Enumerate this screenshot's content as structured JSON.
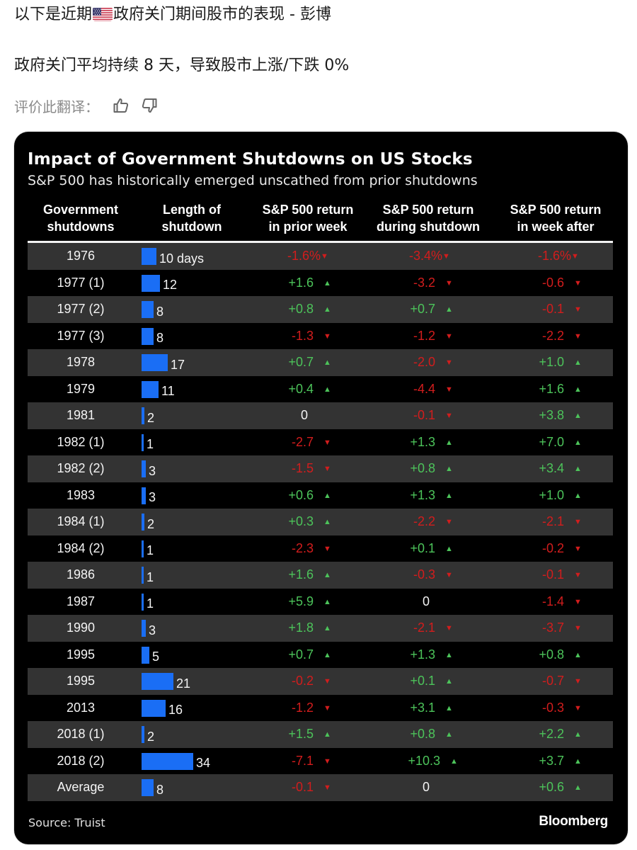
{
  "post": {
    "line1_before_flag": "以下是近期",
    "flag_icon": "us-flag-icon",
    "line1_after_flag": "政府关门期间股市的表现 - 彭博",
    "line2": "政府关门平均持续 8 天，导致股市上涨/下跌 0%",
    "rate_label": "评价此翻译：",
    "thumbs_up_icon": "thumbs-up-icon",
    "thumbs_down_icon": "thumbs-down-icon"
  },
  "colors": {
    "positive": "#4cc35a",
    "negative": "#d21d1d",
    "bar": "#1a6ef5",
    "row_gray": "#333333",
    "card_bg": "#000000"
  },
  "chart_data": {
    "type": "table",
    "title": "Impact of Government Shutdowns on US Stocks",
    "subtitle": "S&P 500 has historically emerged unscathed from prior shutdowns",
    "columns": [
      "Government shutdowns",
      "Length of shutdown",
      "S&P 500 return in prior week",
      "S&P 500 return during shutdown",
      "S&P 500 return in week after"
    ],
    "column_headers": [
      {
        "line1": "Government",
        "line2": "shutdowns"
      },
      {
        "line1": "Length of",
        "line2": "shutdown"
      },
      {
        "line1": "S&P 500 return",
        "line2": "in prior week"
      },
      {
        "line1": "S&P 500 return",
        "line2": "during shutdown"
      },
      {
        "line1": "S&P 500 return",
        "line2": "in week after"
      }
    ],
    "length_unit_first_row": "days",
    "return_unit_first_row": "%",
    "rows": [
      {
        "label": "1976",
        "days": 10,
        "days_text": "10 days",
        "prior": "-1.6%",
        "during": "-3.4%",
        "after": "-1.6%"
      },
      {
        "label": "1977 (1)",
        "days": 12,
        "days_text": "12",
        "prior": "+1.6",
        "during": "-3.2",
        "after": "-0.6"
      },
      {
        "label": "1977 (2)",
        "days": 8,
        "days_text": "8",
        "prior": "+0.8",
        "during": "+0.7",
        "after": "-0.1"
      },
      {
        "label": "1977 (3)",
        "days": 8,
        "days_text": "8",
        "prior": "-1.3",
        "during": "-1.2",
        "after": "-2.2"
      },
      {
        "label": "1978",
        "days": 17,
        "days_text": "17",
        "prior": "+0.7",
        "during": "-2.0",
        "after": "+1.0"
      },
      {
        "label": "1979",
        "days": 11,
        "days_text": "11",
        "prior": "+0.4",
        "during": "-4.4",
        "after": "+1.6"
      },
      {
        "label": "1981",
        "days": 2,
        "days_text": "2",
        "prior": "0",
        "during": "-0.1",
        "after": "+3.8"
      },
      {
        "label": "1982 (1)",
        "days": 1,
        "days_text": "1",
        "prior": "-2.7",
        "during": "+1.3",
        "after": "+7.0"
      },
      {
        "label": "1982 (2)",
        "days": 3,
        "days_text": "3",
        "prior": "-1.5",
        "during": "+0.8",
        "after": "+3.4"
      },
      {
        "label": "1983",
        "days": 3,
        "days_text": "3",
        "prior": "+0.6",
        "during": "+1.3",
        "after": "+1.0"
      },
      {
        "label": "1984 (1)",
        "days": 2,
        "days_text": "2",
        "prior": "+0.3",
        "during": "-2.2",
        "after": "-2.1"
      },
      {
        "label": "1984 (2)",
        "days": 1,
        "days_text": "1",
        "prior": "-2.3",
        "during": "+0.1",
        "after": "-0.2"
      },
      {
        "label": "1986",
        "days": 1,
        "days_text": "1",
        "prior": "+1.6",
        "during": "-0.3",
        "after": "-0.1"
      },
      {
        "label": "1987",
        "days": 1,
        "days_text": "1",
        "prior": "+5.9",
        "during": "0",
        "after": "-1.4"
      },
      {
        "label": "1990",
        "days": 3,
        "days_text": "3",
        "prior": "+1.8",
        "during": "-2.1",
        "after": "-3.7"
      },
      {
        "label": "1995",
        "days": 5,
        "days_text": "5",
        "prior": "+0.7",
        "during": "+1.3",
        "after": "+0.8"
      },
      {
        "label": "1995",
        "days": 21,
        "days_text": "21",
        "prior": "-0.2",
        "during": "+0.1",
        "after": "-0.7"
      },
      {
        "label": "2013",
        "days": 16,
        "days_text": "16",
        "prior": "-1.2",
        "during": "+3.1",
        "after": "-0.3"
      },
      {
        "label": "2018 (1)",
        "days": 2,
        "days_text": "2",
        "prior": "+1.5",
        "during": "+0.8",
        "after": "+2.2"
      },
      {
        "label": "2018 (2)",
        "days": 34,
        "days_text": "34",
        "prior": "-7.1",
        "during": "+10.3",
        "after": "+3.7"
      },
      {
        "label": "Average",
        "days": 8,
        "days_text": "8",
        "prior": "-0.1",
        "during": "0",
        "after": "+0.6"
      }
    ],
    "bar_scale_max_days": 34,
    "source": "Source: Truist",
    "brand": "Bloomberg"
  }
}
